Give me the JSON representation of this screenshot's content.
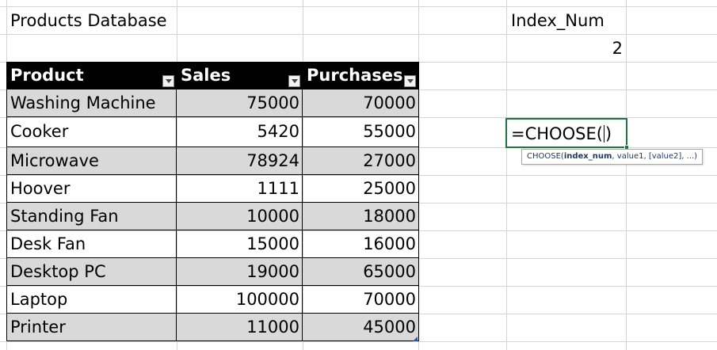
{
  "sheet": {
    "title": "Products Database",
    "index_label": "Index_Num",
    "index_value": "2"
  },
  "table": {
    "headers": [
      "Product",
      "Sales",
      "Purchases"
    ],
    "rows": [
      {
        "product": "Washing Machine",
        "sales": "75000",
        "purchases": "70000"
      },
      {
        "product": "Cooker",
        "sales": "5420",
        "purchases": "55000"
      },
      {
        "product": "Microwave",
        "sales": "78924",
        "purchases": "27000"
      },
      {
        "product": "Hoover",
        "sales": "1111",
        "purchases": "25000"
      },
      {
        "product": "Standing Fan",
        "sales": "10000",
        "purchases": "18000"
      },
      {
        "product": "Desk Fan",
        "sales": "15000",
        "purchases": "16000"
      },
      {
        "product": "Desktop PC",
        "sales": "19000",
        "purchases": "65000"
      },
      {
        "product": "Laptop",
        "sales": "100000",
        "purchases": "70000"
      },
      {
        "product": "Printer",
        "sales": "11000",
        "purchases": "45000"
      }
    ]
  },
  "formula_cell": {
    "before_caret": "=CHOOSE(",
    "after_caret": ")"
  },
  "tooltip": {
    "fn": "CHOOSE(",
    "current_arg": "index_num",
    "rest": ", value1, [value2], ...)"
  },
  "colors": {
    "header_bg": "#000000",
    "band_bg": "#d9d9d9",
    "active_border": "#217346",
    "gridline": "#d4d4d4"
  }
}
